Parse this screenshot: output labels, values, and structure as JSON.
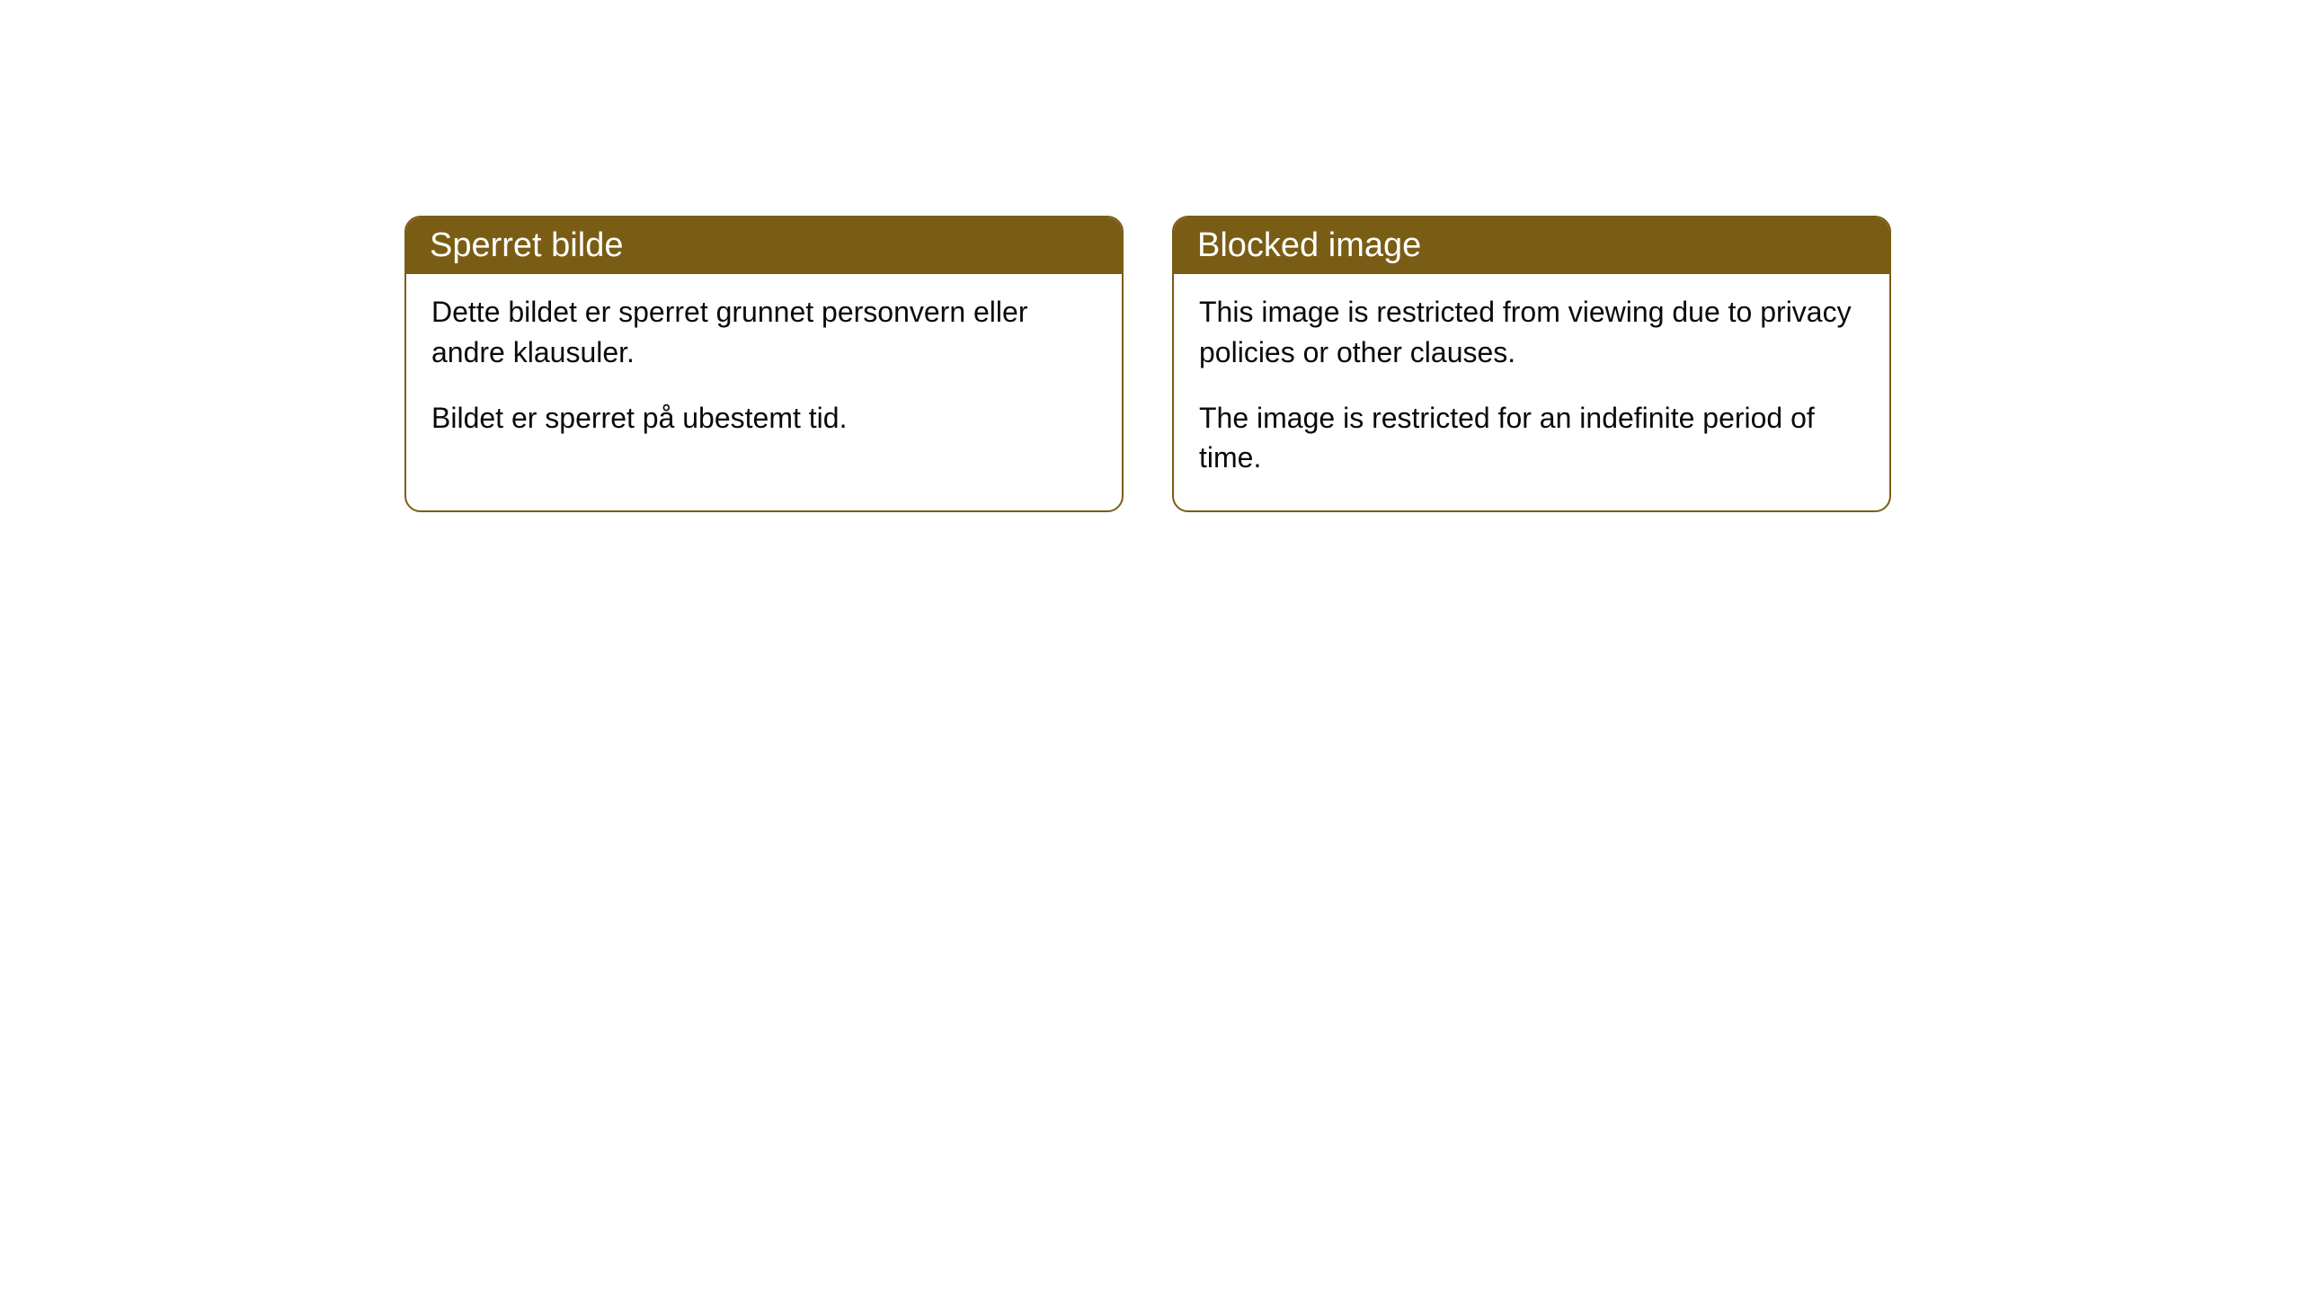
{
  "cards": [
    {
      "title": "Sperret bilde",
      "paragraph1": "Dette bildet er sperret grunnet personvern eller andre klausuler.",
      "paragraph2": "Bildet er sperret på ubestemt tid."
    },
    {
      "title": "Blocked image",
      "paragraph1": "This image is restricted from viewing due to privacy policies or other clauses.",
      "paragraph2": "The image is restricted for an indefinite period of time."
    }
  ],
  "style": {
    "header_bg_color": "#7a5d14",
    "header_text_color": "#ffffff",
    "border_color": "#7a5d14",
    "body_bg_color": "#ffffff",
    "body_text_color": "#0a0a0a",
    "border_radius": 18,
    "header_fontsize": 38,
    "body_fontsize": 32
  }
}
